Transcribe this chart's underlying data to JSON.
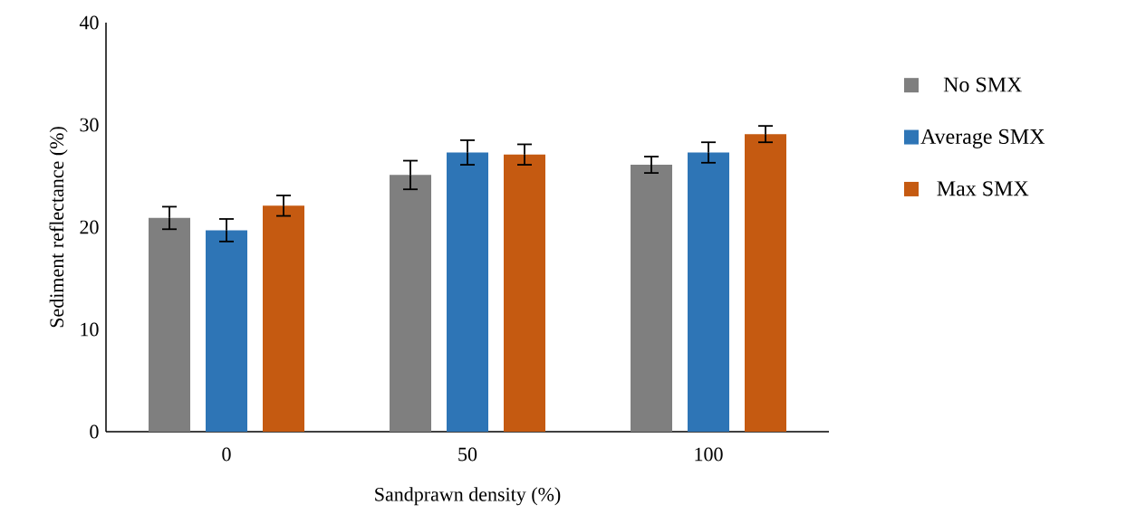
{
  "chart_data": {
    "type": "bar",
    "xlabel": "Sandprawn density (%)",
    "ylabel": "Sediment reflectance (%)",
    "categories": [
      "0",
      "50",
      "100"
    ],
    "series": [
      {
        "name": "No SMX",
        "color": "#7f7f7f",
        "values": [
          20.9,
          25.1,
          26.1
        ],
        "errors": [
          1.1,
          1.4,
          0.8
        ]
      },
      {
        "name": "Average SMX",
        "color": "#2e75b6",
        "values": [
          19.7,
          27.3,
          27.3
        ],
        "errors": [
          1.1,
          1.2,
          1.0
        ]
      },
      {
        "name": "Max SMX",
        "color": "#c55a11",
        "values": [
          22.1,
          27.1,
          29.1
        ],
        "errors": [
          1.0,
          1.0,
          0.8
        ]
      }
    ],
    "ylim": [
      0,
      40
    ],
    "yticks": [
      0,
      10,
      20,
      30,
      40
    ],
    "legend": "right"
  }
}
